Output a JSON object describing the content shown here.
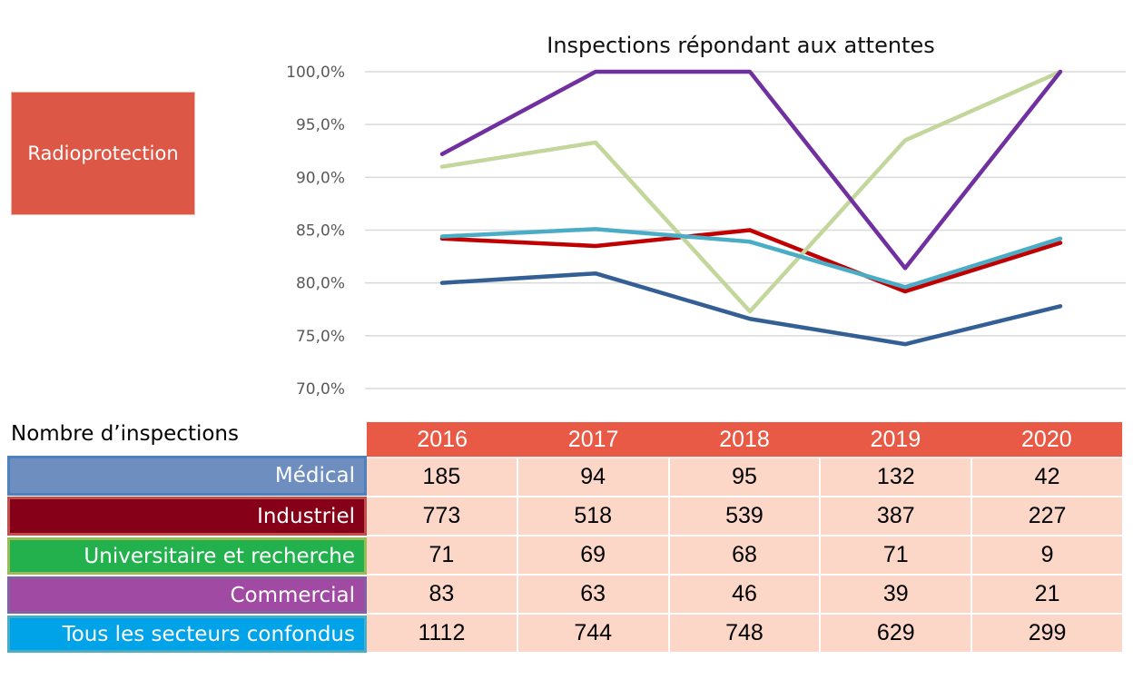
{
  "badge": {
    "label": "Radioprotection",
    "color": "#dd5747"
  },
  "chart_data": {
    "type": "line",
    "title": "Inspections répondant aux attentes",
    "xlabel": "",
    "ylabel": "",
    "x": [
      "2016",
      "2017",
      "2018",
      "2019",
      "2020"
    ],
    "ylim": [
      70,
      100
    ],
    "yticks": [
      70,
      75,
      80,
      85,
      90,
      95,
      100
    ],
    "ytick_labels": [
      "70,0%",
      "75,0%",
      "80,0%",
      "85,0%",
      "90,0%",
      "95,0%",
      "100,0%"
    ],
    "grid": true,
    "legend": "none",
    "series": [
      {
        "name": "Médical",
        "color": "#335f94",
        "values": [
          80.0,
          80.9,
          76.6,
          74.2,
          77.8
        ]
      },
      {
        "name": "Industriel",
        "color": "#c00000",
        "values": [
          84.2,
          83.5,
          85.0,
          79.2,
          83.8
        ]
      },
      {
        "name": "Universitaire et recherche",
        "color": "#c3d69b",
        "values": [
          91.0,
          93.3,
          77.3,
          93.5,
          100.0
        ]
      },
      {
        "name": "Commercial",
        "color": "#7030a0",
        "values": [
          92.2,
          100.0,
          100.0,
          81.4,
          100.0
        ]
      },
      {
        "name": "Tous les secteurs confondus",
        "color": "#4bacc6",
        "values": [
          84.4,
          85.1,
          83.9,
          79.6,
          84.2
        ]
      }
    ]
  },
  "table": {
    "caption": "Nombre d’inspections",
    "years": [
      "2016",
      "2017",
      "2018",
      "2019",
      "2020"
    ],
    "header_color": "#e85a45",
    "rows": [
      {
        "label": "Médical",
        "bg": "#6d8ebf",
        "border": "#4f81bd",
        "values": [
          "185",
          "94",
          "95",
          "132",
          "42"
        ]
      },
      {
        "label": "Industriel",
        "bg": "#860018",
        "border": "#c0504d",
        "values": [
          "773",
          "518",
          "539",
          "387",
          "227"
        ]
      },
      {
        "label": "Universitaire et recherche",
        "bg": "#22b14c",
        "border": "#9bbb59",
        "values": [
          "71",
          "69",
          "68",
          "71",
          "9"
        ]
      },
      {
        "label": "Commercial",
        "bg": "#a14aa3",
        "border": "#8064a2",
        "values": [
          "83",
          "63",
          "46",
          "39",
          "21"
        ]
      },
      {
        "label": "Tous les secteurs confondus",
        "bg": "#00a2e8",
        "border": "#4bacc6",
        "values": [
          "1112",
          "744",
          "748",
          "629",
          "299"
        ]
      }
    ]
  }
}
